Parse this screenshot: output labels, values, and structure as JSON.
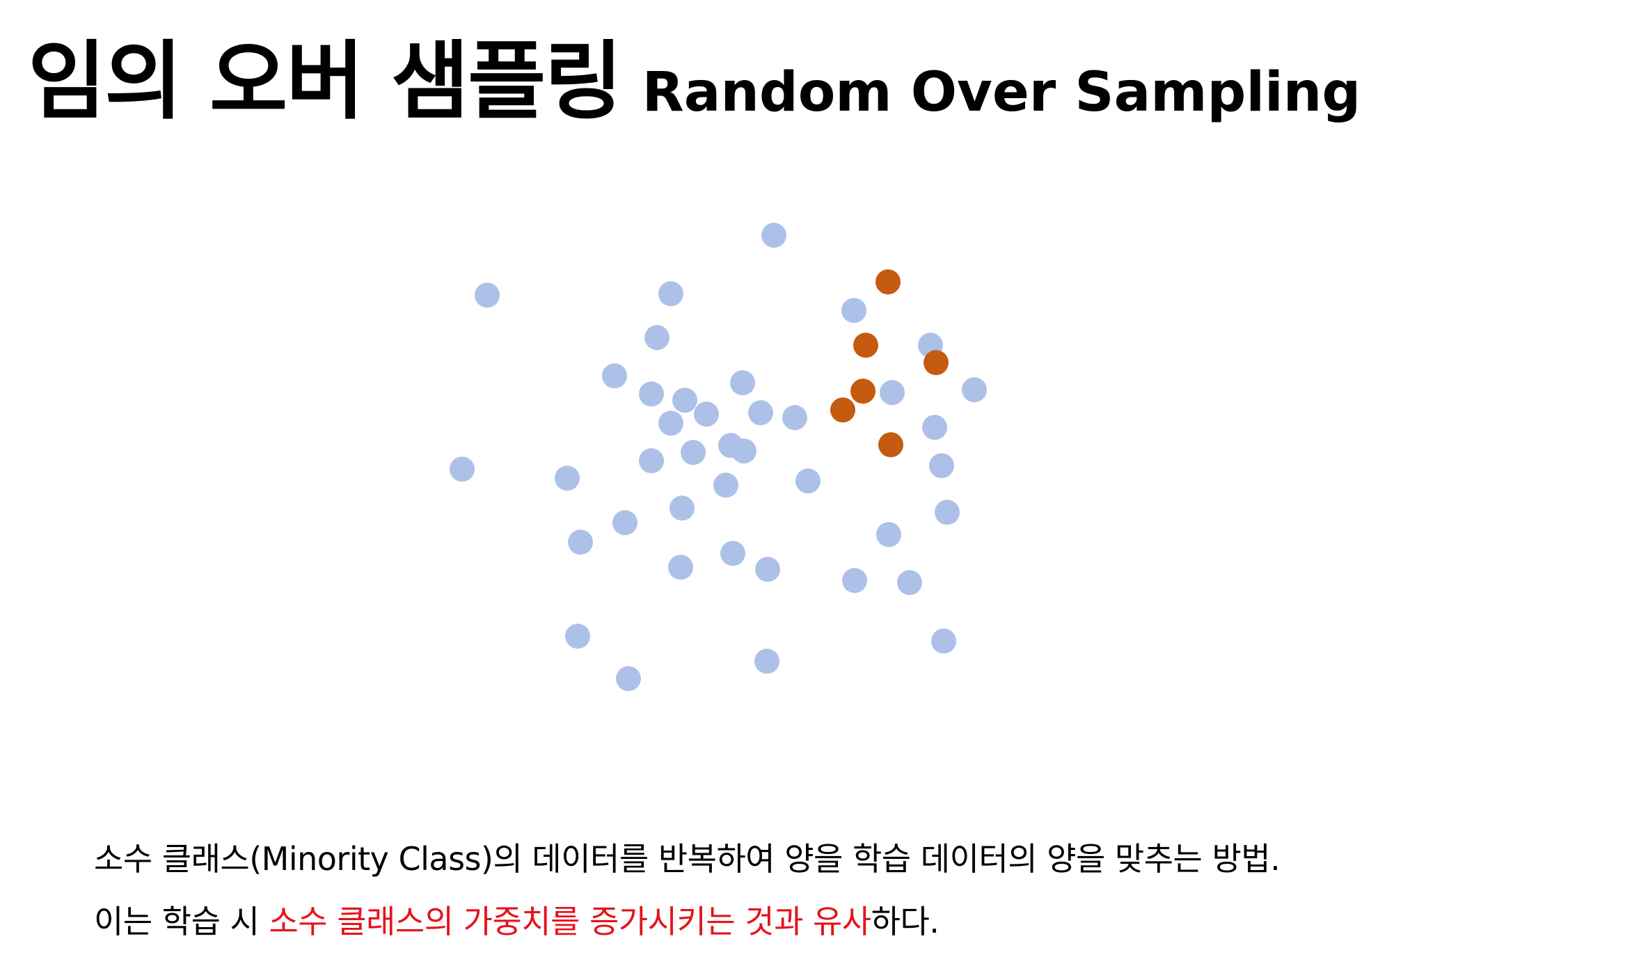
{
  "title": {
    "korean": "임의 오버 샘플링",
    "english": "Random Over Sampling"
  },
  "colors": {
    "majority": "#adc1e8",
    "minority": "#c55a11",
    "highlight": "#e5131b",
    "text": "#000000"
  },
  "chart_data": {
    "type": "scatter",
    "title": "",
    "xlabel": "",
    "ylabel": "",
    "grid": false,
    "series": [
      {
        "color": "#adc1e8",
        "points": [
          [
            1112,
            338
          ],
          [
            700,
            424
          ],
          [
            964,
            422
          ],
          [
            1227,
            446
          ],
          [
            944,
            485
          ],
          [
            1337,
            496
          ],
          [
            883,
            540
          ],
          [
            1067,
            550
          ],
          [
            936,
            566
          ],
          [
            984,
            575
          ],
          [
            1282,
            564
          ],
          [
            1400,
            560
          ],
          [
            1015,
            595
          ],
          [
            1093,
            593
          ],
          [
            964,
            608
          ],
          [
            1142,
            600
          ],
          [
            1343,
            614
          ],
          [
            664,
            674
          ],
          [
            815,
            687
          ],
          [
            936,
            662
          ],
          [
            996,
            650
          ],
          [
            1050,
            640
          ],
          [
            1069,
            648
          ],
          [
            1353,
            669
          ],
          [
            1161,
            691
          ],
          [
            1043,
            697
          ],
          [
            980,
            730
          ],
          [
            898,
            751
          ],
          [
            1361,
            736
          ],
          [
            834,
            779
          ],
          [
            1277,
            768
          ],
          [
            1053,
            795
          ],
          [
            978,
            815
          ],
          [
            1103,
            818
          ],
          [
            1228,
            834
          ],
          [
            1307,
            837
          ],
          [
            830,
            914
          ],
          [
            1356,
            921
          ],
          [
            903,
            975
          ],
          [
            1102,
            950
          ]
        ]
      },
      {
        "color": "#c55a11",
        "points": [
          [
            1276,
            405
          ],
          [
            1244,
            496
          ],
          [
            1345,
            521
          ],
          [
            1240,
            562
          ],
          [
            1211,
            589
          ],
          [
            1280,
            639
          ]
        ]
      }
    ]
  },
  "description": {
    "line1": "소수 클래스(Minority Class)의 데이터를 반복하여 양을 학습 데이터의 양을 맞추는 방법.",
    "line2_prefix": "이는 학습 시 ",
    "line2_highlight": "소수 클래스의 가중치를 증가시키는 것과 유사",
    "line2_suffix": "하다."
  }
}
